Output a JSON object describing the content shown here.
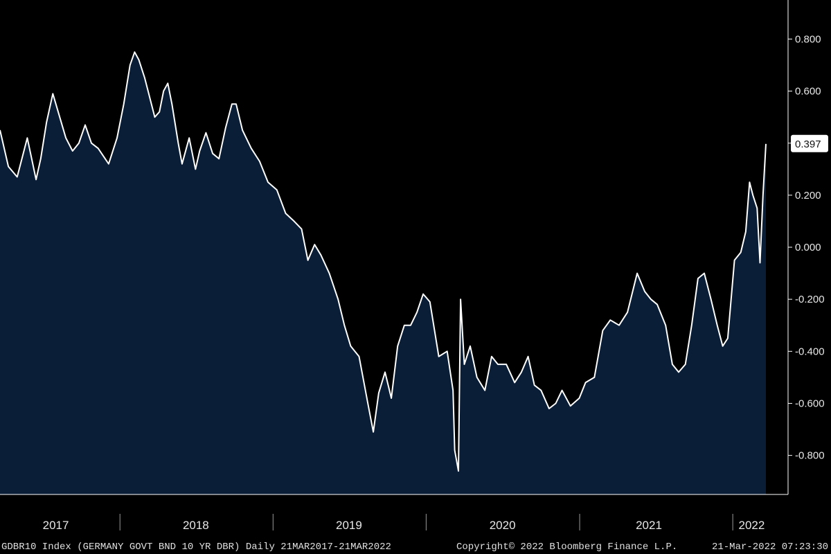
{
  "chart_data": {
    "type": "area",
    "title": "",
    "xlabel": "",
    "ylabel": "",
    "ylim": [
      -0.95,
      0.95
    ],
    "xlim": [
      "2017-03-21",
      "2022-03-21"
    ],
    "y_ticks": [
      0.8,
      0.6,
      0.4,
      0.2,
      0.0,
      -0.2,
      -0.4,
      -0.6,
      -0.8
    ],
    "y_tick_labels": [
      "0.800",
      "0.600",
      "0.400",
      "0.200",
      "0.000",
      "-0.200",
      "-0.400",
      "-0.600",
      "-0.800"
    ],
    "x_tick_labels": [
      "2017",
      "2018",
      "2019",
      "2020",
      "2021",
      "2022"
    ],
    "x_tick_label_dates": [
      "2017-08-01",
      "2018-07-01",
      "2019-07-01",
      "2020-07-01",
      "2021-06-15",
      "2022-02-15"
    ],
    "year_boundaries": [
      "2018-01-01",
      "2019-01-01",
      "2020-01-01",
      "2021-01-01",
      "2022-01-01"
    ],
    "grid": false,
    "legend": "none",
    "colors": {
      "line": "#ffffff",
      "fill": "#0a1e38",
      "background": "#000000",
      "axis": "#ffffff"
    },
    "last_value": 0.397,
    "last_value_label": "0.397",
    "series": [
      {
        "x": [
          "2017-03-21",
          "2017-04-10",
          "2017-05-01",
          "2017-05-25",
          "2017-06-15",
          "2017-06-26",
          "2017-07-10",
          "2017-07-25",
          "2017-08-25",
          "2017-09-10",
          "2017-09-25",
          "2017-10-10",
          "2017-10-25",
          "2017-11-10",
          "2017-12-05",
          "2017-12-25",
          "2018-01-10",
          "2018-01-25",
          "2018-02-05",
          "2018-02-15",
          "2018-03-01",
          "2018-03-25",
          "2018-04-05",
          "2018-04-15",
          "2018-04-25",
          "2018-05-05",
          "2018-05-20",
          "2018-05-29",
          "2018-06-15",
          "2018-06-30",
          "2018-07-10",
          "2018-07-25",
          "2018-08-10",
          "2018-08-25",
          "2018-09-10",
          "2018-09-25",
          "2018-10-05",
          "2018-10-20",
          "2018-11-10",
          "2018-11-30",
          "2018-12-20",
          "2019-01-10",
          "2019-01-31",
          "2019-02-20",
          "2019-03-10",
          "2019-03-25",
          "2019-04-10",
          "2019-04-25",
          "2019-05-15",
          "2019-06-05",
          "2019-06-20",
          "2019-07-05",
          "2019-07-25",
          "2019-08-15",
          "2019-08-28",
          "2019-09-10",
          "2019-09-25",
          "2019-10-10",
          "2019-10-25",
          "2019-11-10",
          "2019-11-25",
          "2019-12-10",
          "2019-12-25",
          "2020-01-10",
          "2020-01-31",
          "2020-02-20",
          "2020-03-05",
          "2020-03-09",
          "2020-03-18",
          "2020-03-23",
          "2020-04-01",
          "2020-04-15",
          "2020-05-01",
          "2020-05-20",
          "2020-06-05",
          "2020-06-20",
          "2020-07-10",
          "2020-07-30",
          "2020-08-15",
          "2020-08-31",
          "2020-09-15",
          "2020-10-01",
          "2020-10-20",
          "2020-11-05",
          "2020-11-20",
          "2020-12-10",
          "2020-12-31",
          "2021-01-15",
          "2021-02-05",
          "2021-02-25",
          "2021-03-15",
          "2021-04-05",
          "2021-04-25",
          "2021-05-18",
          "2021-06-05",
          "2021-06-20",
          "2021-07-05",
          "2021-07-25",
          "2021-08-10",
          "2021-08-25",
          "2021-09-10",
          "2021-09-25",
          "2021-10-10",
          "2021-10-25",
          "2021-11-10",
          "2021-11-25",
          "2021-12-08",
          "2021-12-20",
          "2022-01-05",
          "2022-01-20",
          "2022-02-01",
          "2022-02-10",
          "2022-02-18",
          "2022-02-28",
          "2022-03-07",
          "2022-03-14",
          "2022-03-21"
        ],
        "y": [
          0.45,
          0.31,
          0.27,
          0.42,
          0.26,
          0.34,
          0.48,
          0.59,
          0.42,
          0.37,
          0.4,
          0.47,
          0.4,
          0.38,
          0.32,
          0.42,
          0.55,
          0.7,
          0.75,
          0.72,
          0.65,
          0.5,
          0.52,
          0.6,
          0.63,
          0.55,
          0.4,
          0.32,
          0.42,
          0.3,
          0.37,
          0.44,
          0.36,
          0.34,
          0.46,
          0.55,
          0.55,
          0.45,
          0.38,
          0.33,
          0.25,
          0.22,
          0.13,
          0.1,
          0.07,
          -0.05,
          0.01,
          -0.03,
          -0.1,
          -0.2,
          -0.3,
          -0.38,
          -0.42,
          -0.6,
          -0.71,
          -0.56,
          -0.48,
          -0.58,
          -0.38,
          -0.3,
          -0.3,
          -0.25,
          -0.18,
          -0.21,
          -0.42,
          -0.4,
          -0.55,
          -0.78,
          -0.86,
          -0.2,
          -0.45,
          -0.38,
          -0.5,
          -0.55,
          -0.42,
          -0.45,
          -0.45,
          -0.52,
          -0.48,
          -0.42,
          -0.53,
          -0.55,
          -0.62,
          -0.6,
          -0.55,
          -0.61,
          -0.58,
          -0.52,
          -0.5,
          -0.32,
          -0.28,
          -0.3,
          -0.25,
          -0.1,
          -0.17,
          -0.2,
          -0.22,
          -0.3,
          -0.45,
          -0.48,
          -0.45,
          -0.3,
          -0.12,
          -0.1,
          -0.2,
          -0.3,
          -0.38,
          -0.35,
          -0.05,
          -0.02,
          0.06,
          0.25,
          0.2,
          0.15,
          -0.06,
          0.2,
          0.397
        ]
      }
    ]
  },
  "footer": {
    "left": "GDBR10 Index (GERMANY GOVT BND 10 YR DBR)  Daily 21MAR2017-21MAR2022",
    "center": "Copyright© 2022 Bloomberg Finance L.P.",
    "right": "21-Mar-2022 07:23:30"
  }
}
